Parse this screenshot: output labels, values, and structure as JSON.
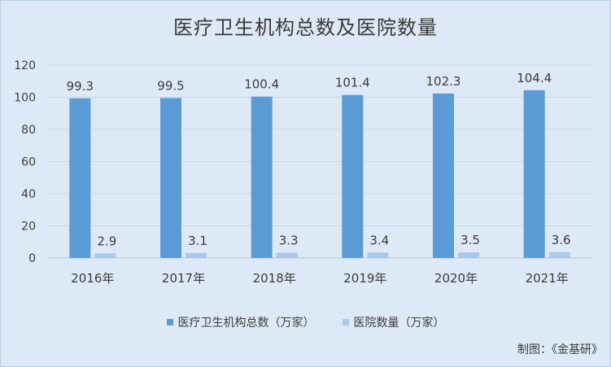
{
  "title": "医疗卫生机构总数及医院数量",
  "source": "制图：《金基研》",
  "legend": {
    "total_label": "医疗卫生机构总数（万家）",
    "hospital_label": "医院数量（万家）"
  },
  "colors": {
    "total": "#5b9bd5",
    "hospital": "#a9c9ea",
    "grid": "#c9d7e6",
    "text": "#3c3c3c"
  },
  "chart_data": {
    "type": "bar",
    "title": "医疗卫生机构总数及医院数量",
    "categories": [
      "2016年",
      "2017年",
      "2018年",
      "2019年",
      "2020年",
      "2021年"
    ],
    "series": [
      {
        "name": "医疗卫生机构总数（万家）",
        "values": [
          99.3,
          99.5,
          100.4,
          101.4,
          102.3,
          104.4
        ]
      },
      {
        "name": "医院数量（万家）",
        "values": [
          2.9,
          3.1,
          3.3,
          3.4,
          3.5,
          3.6
        ]
      }
    ],
    "ylim": [
      0,
      120
    ],
    "yticks": [
      0,
      20,
      40,
      60,
      80,
      100,
      120
    ],
    "grid": true,
    "legend_position": "bottom"
  }
}
